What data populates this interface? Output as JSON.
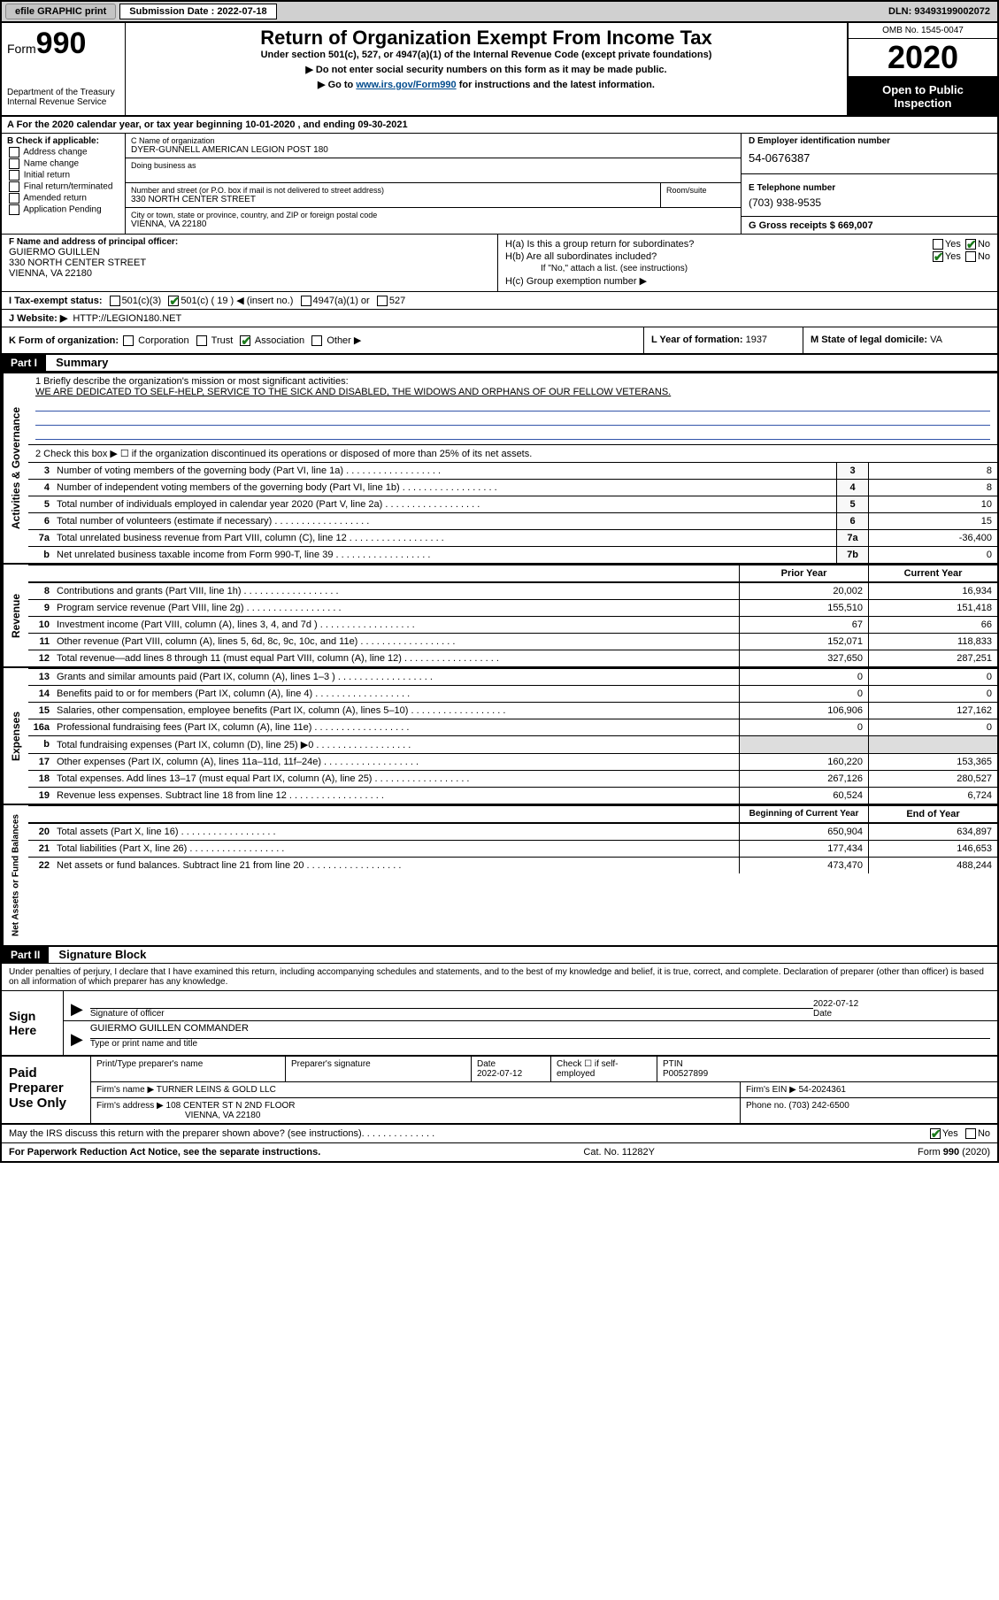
{
  "topbar": {
    "efile": "efile GRAPHIC print",
    "subm_label": "Submission Date : 2022-07-18",
    "dln": "DLN: 93493199002072"
  },
  "header": {
    "form_word": "Form",
    "form_num": "990",
    "dept": "Department of the Treasury\nInternal Revenue Service",
    "title": "Return of Organization Exempt From Income Tax",
    "subtitle": "Under section 501(c), 527, or 4947(a)(1) of the Internal Revenue Code (except private foundations)",
    "line1": "▶ Do not enter social security numbers on this form as it may be made public.",
    "line2_pre": "▶ Go to ",
    "line2_link": "www.irs.gov/Form990",
    "line2_post": " for instructions and the latest information.",
    "omb": "OMB No. 1545-0047",
    "year": "2020",
    "open": "Open to Public Inspection"
  },
  "line_a": "A For the 2020 calendar year, or tax year beginning 10-01-2020    , and ending 09-30-2021",
  "box_b": {
    "label": "B Check if applicable:",
    "items": [
      "Address change",
      "Name change",
      "Initial return",
      "Final return/terminated",
      "Amended return",
      "Application Pending"
    ]
  },
  "box_c": {
    "name_lbl": "C Name of organization",
    "name": "DYER-GUNNELL AMERICAN LEGION POST 180",
    "dba_lbl": "Doing business as",
    "addr_lbl": "Number and street (or P.O. box if mail is not delivered to street address)",
    "addr": "330 NORTH CENTER STREET",
    "suite_lbl": "Room/suite",
    "city_lbl": "City or town, state or province, country, and ZIP or foreign postal code",
    "city": "VIENNA, VA  22180"
  },
  "box_d": {
    "ein_lbl": "D Employer identification number",
    "ein": "54-0676387",
    "tel_lbl": "E Telephone number",
    "tel": "(703) 938-9535",
    "gross_lbl": "G Gross receipts $",
    "gross": "669,007"
  },
  "box_f": {
    "lbl": "F Name and address of principal officer:",
    "name": "GUIERMO GUILLEN",
    "addr1": "330 NORTH CENTER STREET",
    "addr2": "VIENNA, VA  22180"
  },
  "box_h": {
    "ha": "H(a)  Is this a group return for subordinates?",
    "hb": "H(b)  Are all subordinates included?",
    "hb_note": "If \"No,\" attach a list. (see instructions)",
    "hc": "H(c)  Group exemption number ▶"
  },
  "tax_exempt": {
    "lbl": "I   Tax-exempt status:",
    "opts": [
      "501(c)(3)",
      "501(c) ( 19 ) ◀ (insert no.)",
      "4947(a)(1) or",
      "527"
    ]
  },
  "website": {
    "lbl": "J   Website: ▶",
    "val": "HTTP://LEGION180.NET"
  },
  "k": {
    "lbl": "K Form of organization:",
    "opts": [
      "Corporation",
      "Trust",
      "Association",
      "Other ▶"
    ]
  },
  "l": {
    "lbl": "L Year of formation:",
    "val": "1937"
  },
  "m": {
    "lbl": "M State of legal domicile:",
    "val": "VA"
  },
  "part1": {
    "hdr": "Part I",
    "title": "Summary",
    "q1": "1   Briefly describe the organization's mission or most significant activities:",
    "mission": "WE ARE DEDICATED TO SELF-HELP, SERVICE TO THE SICK AND DISABLED, THE WIDOWS AND ORPHANS OF OUR FELLOW VETERANS.",
    "q2": "2   Check this box ▶ ☐  if the organization discontinued its operations or disposed of more than 25% of its net assets.",
    "rows_single": [
      {
        "n": "3",
        "t": "Number of voting members of the governing body (Part VI, line 1a)",
        "box": "3",
        "v": "8"
      },
      {
        "n": "4",
        "t": "Number of independent voting members of the governing body (Part VI, line 1b)",
        "box": "4",
        "v": "8"
      },
      {
        "n": "5",
        "t": "Total number of individuals employed in calendar year 2020 (Part V, line 2a)",
        "box": "5",
        "v": "10"
      },
      {
        "n": "6",
        "t": "Total number of volunteers (estimate if necessary)",
        "box": "6",
        "v": "15"
      },
      {
        "n": "7a",
        "t": "Total unrelated business revenue from Part VIII, column (C), line 12",
        "box": "7a",
        "v": "-36,400"
      },
      {
        "n": "b",
        "t": "Net unrelated business taxable income from Form 990-T, line 39",
        "box": "7b",
        "v": "0"
      }
    ],
    "col_hdr1": "Prior Year",
    "col_hdr2": "Current Year",
    "revenue_rows": [
      {
        "n": "8",
        "t": "Contributions and grants (Part VIII, line 1h)",
        "v1": "20,002",
        "v2": "16,934"
      },
      {
        "n": "9",
        "t": "Program service revenue (Part VIII, line 2g)",
        "v1": "155,510",
        "v2": "151,418"
      },
      {
        "n": "10",
        "t": "Investment income (Part VIII, column (A), lines 3, 4, and 7d )",
        "v1": "67",
        "v2": "66"
      },
      {
        "n": "11",
        "t": "Other revenue (Part VIII, column (A), lines 5, 6d, 8c, 9c, 10c, and 11e)",
        "v1": "152,071",
        "v2": "118,833"
      },
      {
        "n": "12",
        "t": "Total revenue—add lines 8 through 11 (must equal Part VIII, column (A), line 12)",
        "v1": "327,650",
        "v2": "287,251"
      }
    ],
    "expense_rows": [
      {
        "n": "13",
        "t": "Grants and similar amounts paid (Part IX, column (A), lines 1–3 )",
        "v1": "0",
        "v2": "0"
      },
      {
        "n": "14",
        "t": "Benefits paid to or for members (Part IX, column (A), line 4)",
        "v1": "0",
        "v2": "0"
      },
      {
        "n": "15",
        "t": "Salaries, other compensation, employee benefits (Part IX, column (A), lines 5–10)",
        "v1": "106,906",
        "v2": "127,162"
      },
      {
        "n": "16a",
        "t": "Professional fundraising fees (Part IX, column (A), line 11e)",
        "v1": "0",
        "v2": "0"
      },
      {
        "n": "b",
        "t": "Total fundraising expenses (Part IX, column (D), line 25) ▶0",
        "v1": "",
        "v2": ""
      },
      {
        "n": "17",
        "t": "Other expenses (Part IX, column (A), lines 11a–11d, 11f–24e)",
        "v1": "160,220",
        "v2": "153,365"
      },
      {
        "n": "18",
        "t": "Total expenses. Add lines 13–17 (must equal Part IX, column (A), line 25)",
        "v1": "267,126",
        "v2": "280,527"
      },
      {
        "n": "19",
        "t": "Revenue less expenses. Subtract line 18 from line 12",
        "v1": "60,524",
        "v2": "6,724"
      }
    ],
    "col_hdr3": "Beginning of Current Year",
    "col_hdr4": "End of Year",
    "net_rows": [
      {
        "n": "20",
        "t": "Total assets (Part X, line 16)",
        "v1": "650,904",
        "v2": "634,897"
      },
      {
        "n": "21",
        "t": "Total liabilities (Part X, line 26)",
        "v1": "177,434",
        "v2": "146,653"
      },
      {
        "n": "22",
        "t": "Net assets or fund balances. Subtract line 21 from line 20",
        "v1": "473,470",
        "v2": "488,244"
      }
    ],
    "side_gov": "Activities & Governance",
    "side_rev": "Revenue",
    "side_exp": "Expenses",
    "side_net": "Net Assets or Fund Balances"
  },
  "part2": {
    "hdr": "Part II",
    "title": "Signature Block",
    "decl": "Under penalties of perjury, I declare that I have examined this return, including accompanying schedules and statements, and to the best of my knowledge and belief, it is true, correct, and complete. Declaration of preparer (other than officer) is based on all information of which preparer has any knowledge.",
    "sign_here": "Sign Here",
    "sig_lbl": "Signature of officer",
    "date_lbl": "Date",
    "sig_date": "2022-07-12",
    "officer": "GUIERMO GUILLEN  COMMANDER",
    "type_lbl": "Type or print name and title",
    "paid": "Paid Preparer Use Only",
    "prep_name_lbl": "Print/Type preparer's name",
    "prep_sig_lbl": "Preparer's signature",
    "prep_date_lbl": "Date",
    "prep_date": "2022-07-12",
    "prep_self": "Check ☐ if self-employed",
    "ptin_lbl": "PTIN",
    "ptin": "P00527899",
    "firm_name_lbl": "Firm's name      ▶",
    "firm_name": "TURNER LEINS & GOLD LLC",
    "firm_ein_lbl": "Firm's EIN ▶",
    "firm_ein": "54-2024361",
    "firm_addr_lbl": "Firm's address ▶",
    "firm_addr": "108 CENTER ST N 2ND FLOOR",
    "firm_city": "VIENNA, VA  22180",
    "phone_lbl": "Phone no.",
    "phone": "(703) 242-6500",
    "discuss": "May the IRS discuss this return with the preparer shown above? (see instructions)"
  },
  "footer": {
    "fpr": "For Paperwork Reduction Act Notice, see the separate instructions.",
    "cat": "Cat. No. 11282Y",
    "form": "Form 990 (2020)"
  },
  "yn": {
    "yes": "Yes",
    "no": "No"
  }
}
